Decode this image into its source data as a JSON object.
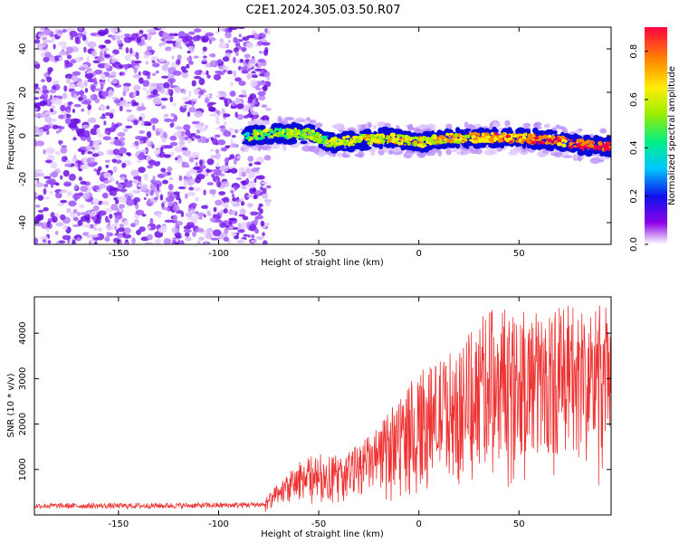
{
  "figure_title": "C2E1.2024.305.03.50.R07",
  "chart_data": [
    {
      "type": "heatmap",
      "xlabel": "Height of straight line (km)",
      "ylabel": "Frequency (Hz)",
      "xlim": [
        -192,
        96
      ],
      "ylim": [
        -50,
        50
      ],
      "xticks": [
        -150,
        -100,
        -50,
        0,
        50
      ],
      "xtick_labels": [
        "-150",
        "-100",
        "-50",
        "0",
        "50"
      ],
      "yticks": [
        -40,
        -20,
        0,
        20,
        40
      ],
      "ytick_labels": [
        "-40",
        "-20",
        "0",
        "20",
        "40"
      ],
      "noise_region_x": [
        -192,
        -75
      ],
      "signal_band_center": [
        [
          -87,
          0
        ],
        [
          -70,
          1
        ],
        [
          -55,
          1
        ],
        [
          -45,
          -3
        ],
        [
          -30,
          -2
        ],
        [
          -15,
          -1
        ],
        [
          0,
          -3
        ],
        [
          15,
          -1
        ],
        [
          30,
          -1
        ],
        [
          50,
          -1
        ],
        [
          65,
          -2
        ],
        [
          80,
          -4
        ],
        [
          96,
          -5
        ]
      ],
      "grid": false,
      "colorbar": {
        "label": "Normalized spectral amplitude",
        "range": [
          0,
          0.9
        ],
        "ticks": [
          0,
          0.2,
          0.4,
          0.6,
          0.8
        ],
        "tick_labels": [
          "0.0",
          "0.2",
          "0.4",
          "0.6",
          "0.8"
        ],
        "colormap": "rainbow"
      }
    },
    {
      "type": "line",
      "xlabel": "Height of straight line (km)",
      "ylabel": "SNR (10 * v/v)",
      "xlim": [
        -192,
        96
      ],
      "ylim": [
        0,
        4800
      ],
      "xticks": [
        -150,
        -100,
        -50,
        0,
        50
      ],
      "xtick_labels": [
        "-150",
        "-100",
        "-50",
        "0",
        "50"
      ],
      "yticks": [
        1000,
        2000,
        3000,
        4000
      ],
      "ytick_labels": [
        "1000",
        "2000",
        "3000",
        "4000"
      ],
      "color": "#ee3333",
      "grid": false,
      "envelope": {
        "x": [
          -192,
          -150,
          -100,
          -77,
          -70,
          -60,
          -50,
          -40,
          -30,
          -20,
          -10,
          0,
          10,
          20,
          30,
          40,
          50,
          60,
          70,
          80,
          96
        ],
        "y": [
          200,
          200,
          210,
          230,
          450,
          750,
          900,
          850,
          1000,
          1250,
          1700,
          2050,
          2200,
          2450,
          2800,
          3000,
          2950,
          2900,
          2950,
          3000,
          3000
        ]
      }
    }
  ]
}
